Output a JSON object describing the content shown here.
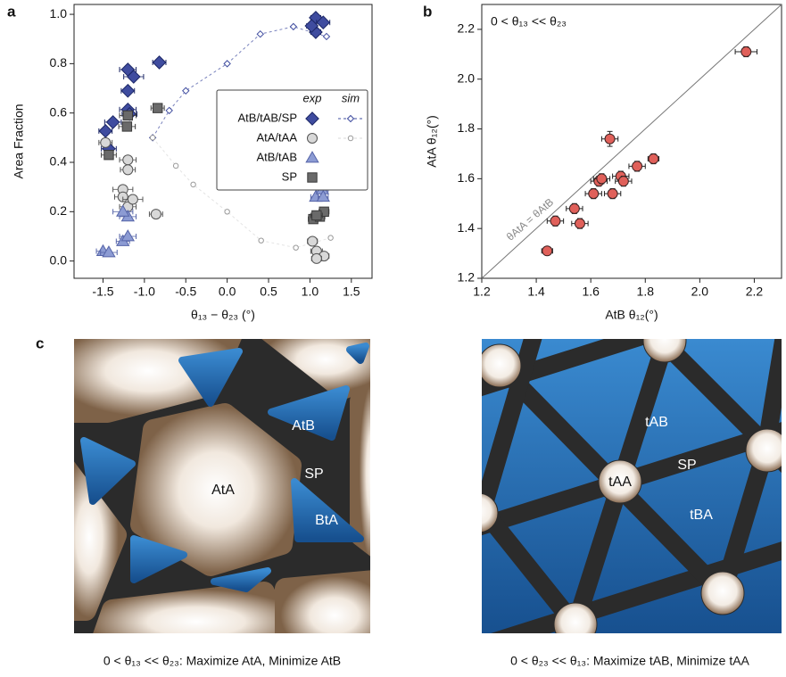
{
  "panel_labels": [
    "a",
    "b",
    "c"
  ],
  "chart_data": [
    {
      "type": "scatter",
      "xlabel": "θ₁₃ − θ₂₃ (°)",
      "ylabel": "Area Fraction",
      "xlim": [
        -1.85,
        1.75
      ],
      "ylim": [
        -0.07,
        1.04
      ],
      "xticks": [
        -1.5,
        {
          "value": -1,
          "label": "-1.0"
        },
        -0.5,
        {
          "value": 0,
          "label": "0.0"
        },
        0.5,
        {
          "value": 1,
          "label": "1.0"
        },
        1.5
      ],
      "yticks": [
        {
          "value": 0,
          "label": "0.0"
        },
        0.2,
        0.4,
        0.6,
        0.8,
        {
          "value": 1,
          "label": "1.0"
        }
      ],
      "legend_columns": [
        "exp",
        "sim"
      ],
      "legend_position": "center right",
      "series": [
        {
          "name": "AtB/tAB/SP",
          "marker": "diamond",
          "color": "#3f4c9f",
          "edge": "#1c2766",
          "exp": {
            "x": [
              -1.47,
              -1.38,
              -1.43,
              -1.2,
              -1.13,
              -1.2,
              -1.2,
              -1.18,
              -0.82,
              1.07,
              1.16,
              1.07,
              1.02
            ],
            "values": [
              0.527,
              0.563,
              0.455,
              0.776,
              0.747,
              0.69,
              0.614,
              0.596,
              0.805,
              0.986,
              0.967,
              0.928,
              0.953
            ],
            "xerr": [
              0.08,
              0.1,
              0.09,
              0.1,
              0.12,
              0.08,
              0.1,
              0.09,
              0.08,
              0.06,
              0.08,
              0.06,
              0.06
            ]
          },
          "sim": {
            "x": [
              -0.9,
              -0.7,
              -0.5,
              0,
              0.4,
              0.8,
              1.2
            ],
            "values": [
              0.5,
              0.61,
              0.69,
              0.8,
              0.92,
              0.95,
              0.91
            ]
          }
        },
        {
          "name": "AtA/tAA",
          "marker": "circle",
          "color": "#d8d8d8",
          "edge": "#555555",
          "exp": {
            "x": [
              -1.47,
              -1.2,
              -1.2,
              -1.26,
              -1.26,
              -1.2,
              -1.14,
              -0.86,
              1.03,
              1.08,
              1.17,
              1.08
            ],
            "values": [
              0.48,
              0.41,
              0.37,
              0.29,
              0.26,
              0.22,
              0.25,
              0.19,
              0.08,
              0.04,
              0.02,
              0.01
            ],
            "xerr": [
              0.08,
              0.1,
              0.09,
              0.12,
              0.1,
              0.1,
              0.12,
              0.08,
              0.06,
              0.07,
              0.06,
              0.06
            ]
          },
          "sim": {
            "x": [
              -0.9,
              -0.62,
              -0.41,
              0,
              0.41,
              0.83,
              1.25
            ],
            "values": [
              0.5,
              0.386,
              0.31,
              0.2,
              0.083,
              0.054,
              0.094
            ]
          }
        },
        {
          "name": "AtB/tAB",
          "marker": "triangle",
          "color": "#8c9bd3",
          "edge": "#5564a8",
          "exp": {
            "x": [
              -1.5,
              -1.43,
              -1.26,
              -1.2,
              -1.2,
              -1.26,
              1.07,
              1.08,
              1.15,
              1.16
            ],
            "values": [
              0.04,
              0.035,
              0.08,
              0.1,
              0.18,
              0.2,
              0.26,
              0.31,
              0.29,
              0.26
            ],
            "xerr": [
              0.08,
              0.1,
              0.08,
              0.1,
              0.1,
              0.12,
              0.06,
              0.06,
              0.07,
              0.06
            ]
          }
        },
        {
          "name": "SP",
          "marker": "square",
          "color": "#6a6a6a",
          "edge": "#3a3a3a",
          "exp": {
            "x": [
              -1.43,
              -1.21,
              -1.2,
              -0.84,
              1.04,
              1.12,
              1.17,
              1.08
            ],
            "values": [
              0.43,
              0.545,
              0.59,
              0.62,
              0.17,
              0.18,
              0.2,
              0.185
            ],
            "xerr": [
              0.09,
              0.1,
              0.1,
              0.08,
              0.06,
              0.06,
              0.06,
              0.07
            ]
          }
        }
      ]
    },
    {
      "type": "scatter",
      "xlabel": "AtB θ₁₂(°)",
      "ylabel": "AtA θ₁₂(°)",
      "xlim": [
        1.2,
        2.3
      ],
      "ylim": [
        1.2,
        2.3
      ],
      "xticks": [
        1.2,
        1.4,
        1.6,
        1.8,
        {
          "value": 2,
          "label": "2.0"
        },
        2.2
      ],
      "yticks": [
        1.2,
        1.4,
        1.6,
        1.8,
        {
          "value": 2,
          "label": "2.0"
        },
        2.2
      ],
      "diagonal": true,
      "annotations": [
        "0 < θ₁₃ << θ₂₃",
        "θAtA = θAtB"
      ],
      "color": "#e0605a",
      "edge": "#3a2222",
      "x": [
        1.44,
        1.47,
        1.54,
        1.56,
        1.61,
        1.63,
        1.64,
        1.67,
        1.68,
        1.71,
        1.72,
        1.77,
        1.83,
        2.17
      ],
      "values": [
        1.31,
        1.43,
        1.48,
        1.42,
        1.54,
        1.59,
        1.6,
        1.76,
        1.54,
        1.61,
        1.59,
        1.65,
        1.68,
        2.11
      ],
      "xerr": [
        0.02,
        0.03,
        0.03,
        0.03,
        0.03,
        0.03,
        0.03,
        0.03,
        0.03,
        0.03,
        0.03,
        0.03,
        0.02,
        0.04
      ],
      "yerr": [
        0.01,
        0.02,
        0.02,
        0.02,
        0.02,
        0.02,
        0.02,
        0.03,
        0.02,
        0.02,
        0.02,
        0.02,
        0.02,
        0.02
      ]
    }
  ],
  "panel_c": {
    "left": {
      "labels": [
        "AtA",
        "AtB",
        "SP",
        "BtA"
      ],
      "caption": "0 < θ₁₃ << θ₂₃: Maximize AtA, Minimize AtB"
    },
    "right": {
      "labels": [
        "tAB",
        "SP",
        "tAA",
        "tBA"
      ],
      "caption": "0 < θ₂₃ << θ₁₃: Maximize tAB, Minimize tAA"
    }
  }
}
